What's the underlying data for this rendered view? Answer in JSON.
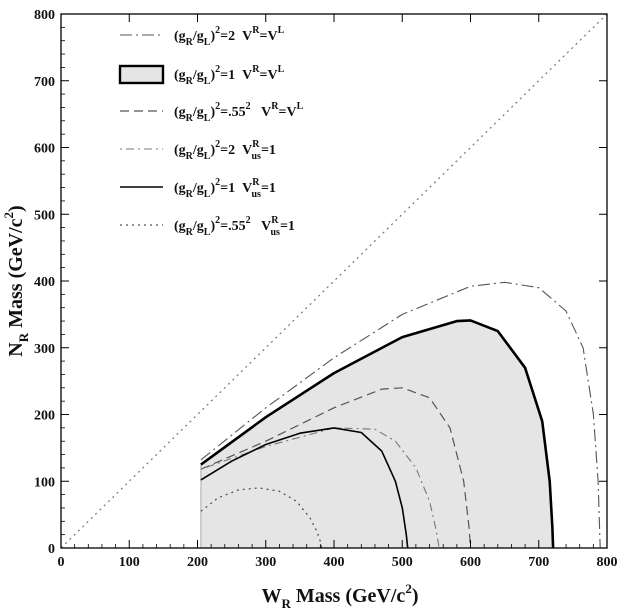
{
  "chart_data": {
    "type": "line",
    "title": "",
    "xlabel": {
      "main": "W",
      "sub": "R",
      "rest": " Mass (GeV/c",
      "sup": "2",
      "close": ")"
    },
    "ylabel": {
      "main": "N",
      "sub": "R",
      "rest": " Mass (GeV/c",
      "sup": "2",
      "close": ")"
    },
    "xlim": [
      0,
      800
    ],
    "ylim": [
      0,
      800
    ],
    "xticks": [
      0,
      100,
      200,
      300,
      400,
      500,
      600,
      700,
      800
    ],
    "yticks": [
      0,
      100,
      200,
      300,
      400,
      500,
      600,
      700,
      800
    ],
    "grid": false,
    "legend_position": "top-left",
    "series": [
      {
        "name": "(gR/gL)^2=2 VR=VL",
        "legend": {
          "pre": "(g",
          "s1": "R",
          "mid": "/g",
          "s2": "L",
          "post": ")",
          "exp": "2",
          "eq": "=2",
          "v": "V",
          "vsup": "R",
          "vsub": "",
          "veq": "=V",
          "rsup": "L",
          "tail": ""
        },
        "style": "dashdot",
        "color": "#555555",
        "width": 1.1,
        "x": [
          205,
          300,
          400,
          500,
          600,
          650,
          700,
          740,
          765,
          780,
          787,
          790
        ],
        "y": [
          132,
          210,
          285,
          350,
          392,
          398,
          390,
          355,
          300,
          200,
          100,
          0
        ]
      },
      {
        "name": "(gR/gL)^2=1 VR=VL",
        "legend": {
          "pre": "(g",
          "s1": "R",
          "mid": "/g",
          "s2": "L",
          "post": ")",
          "exp": "2",
          "eq": "=1",
          "v": "V",
          "vsup": "R",
          "vsub": "",
          "veq": "=V",
          "rsup": "L",
          "tail": ""
        },
        "style": "band",
        "color": "#000000",
        "width": 2.6,
        "fill": "#e5e5e5",
        "x": [
          205,
          300,
          400,
          500,
          580,
          600,
          640,
          680,
          705,
          716,
          720,
          721
        ],
        "y": [
          125,
          196,
          262,
          316,
          340,
          341,
          325,
          270,
          190,
          100,
          30,
          0
        ]
      },
      {
        "name": "(gR/gL)^2=.55^2 VR=VL",
        "legend": {
          "pre": "(g",
          "s1": "R",
          "mid": "/g",
          "s2": "L",
          "post": ")",
          "exp": "2",
          "eq": "=.55",
          "eqsup": "2",
          "v": " V",
          "vsup": "R",
          "vsub": "",
          "veq": "=V",
          "rsup": "L",
          "tail": ""
        },
        "style": "dashed",
        "color": "#555555",
        "width": 1.2,
        "x": [
          205,
          300,
          400,
          470,
          500,
          540,
          570,
          590,
          598,
          600
        ],
        "y": [
          118,
          160,
          210,
          238,
          240,
          225,
          180,
          100,
          30,
          0
        ]
      },
      {
        "name": "(gR/gL)^2=2 VRus=1",
        "legend": {
          "pre": "(g",
          "s1": "R",
          "mid": "/g",
          "s2": "L",
          "post": ")",
          "exp": "2",
          "eq": "=2",
          "v": "V",
          "vsup": "R",
          "vsub": "us",
          "veq": "=1",
          "rsup": "",
          "tail": ""
        },
        "style": "dotdash",
        "color": "#777777",
        "width": 1.1,
        "x": [
          205,
          300,
          400,
          460,
          490,
          520,
          540,
          550,
          554
        ],
        "y": [
          118,
          152,
          180,
          178,
          160,
          120,
          70,
          25,
          0
        ]
      },
      {
        "name": "(gR/gL)^2=1 VRus=1",
        "legend": {
          "pre": "(g",
          "s1": "R",
          "mid": "/g",
          "s2": "L",
          "post": ")",
          "exp": "2",
          "eq": "=1",
          "v": "V",
          "vsup": "R",
          "vsub": "us",
          "veq": "=1",
          "rsup": "",
          "tail": ""
        },
        "style": "solid",
        "color": "#000000",
        "width": 1.6,
        "x": [
          205,
          250,
          300,
          350,
          400,
          440,
          470,
          490,
          500,
          506,
          508
        ],
        "y": [
          102,
          130,
          155,
          172,
          180,
          173,
          145,
          100,
          60,
          20,
          0
        ]
      },
      {
        "name": "(gR/gL)^2=.55^2 VRus=1",
        "legend": {
          "pre": "(g",
          "s1": "R",
          "mid": "/g",
          "s2": "L",
          "post": ")",
          "exp": "2",
          "eq": "=.55",
          "eqsup": "2",
          "v": " V",
          "vsup": "R",
          "vsub": "us",
          "veq": "=1",
          "rsup": "",
          "tail": ""
        },
        "style": "dotted",
        "color": "#555555",
        "width": 1.3,
        "x": [
          205,
          230,
          260,
          290,
          320,
          345,
          365,
          375,
          380,
          382
        ],
        "y": [
          55,
          75,
          87,
          90,
          85,
          70,
          45,
          25,
          10,
          0
        ]
      }
    ],
    "diagonal": {
      "style": "dotted",
      "color": "#777777",
      "from": [
        0,
        0
      ],
      "to": [
        800,
        800
      ]
    }
  }
}
